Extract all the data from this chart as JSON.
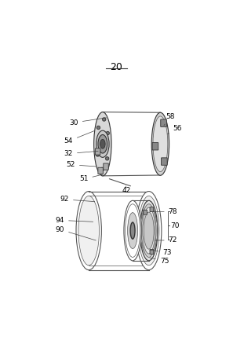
{
  "title": "20",
  "bg_color": "#ffffff",
  "line_color": "#555555",
  "dark_color": "#333333",
  "light_gray": "#aaaaaa"
}
